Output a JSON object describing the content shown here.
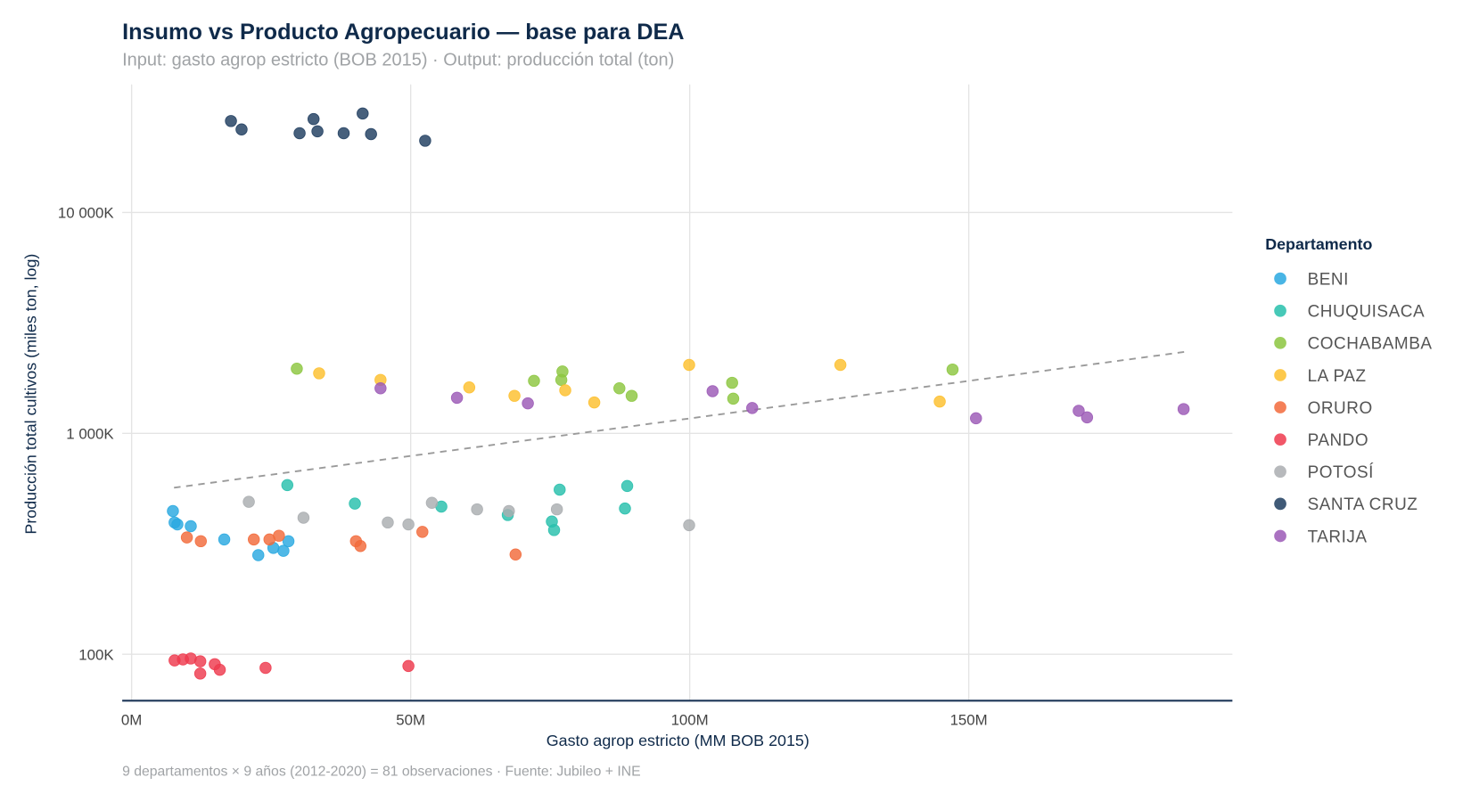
{
  "chart_data": {
    "type": "scatter",
    "title": "Insumo vs Producto Agropecuario — base para DEA",
    "subtitle": "Input: gasto agrop estricto (BOB 2015) · Output: producción total (ton)",
    "xlabel": "Gasto agrop estricto (MM BOB 2015)",
    "ylabel": "Producción total cultivos (miles ton, log)",
    "caption": "9 departamentos × 9 años (2012-2020) = 81 observaciones · Fuente: Jubileo + INE",
    "x_unit": "M BOB",
    "y_unit": "K ton",
    "y_scale": "log",
    "xlim": [
      -1.7,
      197
    ],
    "ylim": [
      60,
      40000
    ],
    "x_ticks": [
      {
        "value": 0,
        "label": "0M"
      },
      {
        "value": 50,
        "label": "50M"
      },
      {
        "value": 100,
        "label": "100M"
      },
      {
        "value": 150,
        "label": "150M"
      }
    ],
    "y_ticks": [
      {
        "value": 100,
        "label": "100K"
      },
      {
        "value": 1000,
        "label": "1 000K"
      },
      {
        "value": 10000,
        "label": "10 000K"
      }
    ],
    "grid": true,
    "legend": {
      "title": "Departamento",
      "placement": "right"
    },
    "trendline": {
      "type": "log-linear",
      "intercept_log10": 2.728,
      "slope_log10_per_M": 0.003396,
      "x_range": [
        7.6,
        188.7
      ],
      "color": "#9a9a9a",
      "style": "dashed"
    },
    "series": [
      {
        "name": "BENI",
        "color": "#29a8e0",
        "x": [
          7.4,
          7.7,
          8.2,
          10.6,
          16.6,
          22.7,
          25.4,
          27.2,
          28.1
        ],
        "y": [
          445,
          395,
          387,
          380,
          331,
          281,
          303,
          294,
          325
        ]
      },
      {
        "name": "CHUQUISACA",
        "color": "#27bfac",
        "x": [
          27.9,
          40.0,
          55.5,
          67.4,
          75.3,
          75.7,
          76.7,
          88.4,
          88.8
        ],
        "y": [
          583,
          481,
          466,
          427,
          399,
          365,
          556,
          457,
          578
        ]
      },
      {
        "name": "COCHABAMBA",
        "color": "#8cc63f",
        "x": [
          29.6,
          72.1,
          77.2,
          77.0,
          87.4,
          89.6,
          107.6,
          107.8,
          147.1
        ],
        "y": [
          1963,
          1729,
          1906,
          1746,
          1600,
          1479,
          1694,
          1436,
          1945
        ]
      },
      {
        "name": "LA PAZ",
        "color": "#fdbf2d",
        "x": [
          33.6,
          44.6,
          60.5,
          68.6,
          77.7,
          82.9,
          99.9,
          127.0,
          144.8
        ],
        "y": [
          1870,
          1746,
          1615,
          1479,
          1567,
          1380,
          2042,
          2042,
          1393
        ]
      },
      {
        "name": "ORURO",
        "color": "#f26a3b",
        "x": [
          9.9,
          12.4,
          21.9,
          24.7,
          26.4,
          40.2,
          41.0,
          52.1,
          68.8
        ],
        "y": [
          338,
          325,
          331,
          331,
          344,
          325,
          309,
          358,
          283
        ]
      },
      {
        "name": "PANDO",
        "color": "#ee3a4e",
        "x": [
          7.7,
          9.2,
          10.6,
          12.3,
          12.3,
          14.9,
          15.8,
          24.0,
          49.6
        ],
        "y": [
          93.8,
          94.8,
          95.7,
          92.9,
          81.8,
          90.2,
          85.1,
          86.8,
          88.5
        ]
      },
      {
        "name": "POTOSÍ",
        "color": "#aaadb0",
        "x": [
          21.0,
          30.8,
          45.9,
          49.6,
          53.8,
          61.9,
          67.6,
          76.2,
          99.9
        ],
        "y": [
          490,
          415,
          395,
          387,
          485,
          453,
          445,
          453,
          384
        ]
      },
      {
        "name": "SANTA CRUZ",
        "color": "#1f3d5f",
        "x": [
          17.8,
          19.7,
          30.1,
          32.6,
          33.3,
          38.0,
          41.4,
          42.9,
          52.6
        ],
        "y": [
          25940,
          23760,
          22850,
          26470,
          23290,
          22850,
          28050,
          22630,
          21120
        ]
      },
      {
        "name": "TARIJA",
        "color": "#9b59b6",
        "x": [
          44.6,
          58.3,
          71.0,
          104.1,
          111.2,
          151.3,
          169.7,
          171.2,
          188.5
        ],
        "y": [
          1600,
          1449,
          1367,
          1552,
          1302,
          1170,
          1265,
          1181,
          1288
        ]
      }
    ]
  }
}
